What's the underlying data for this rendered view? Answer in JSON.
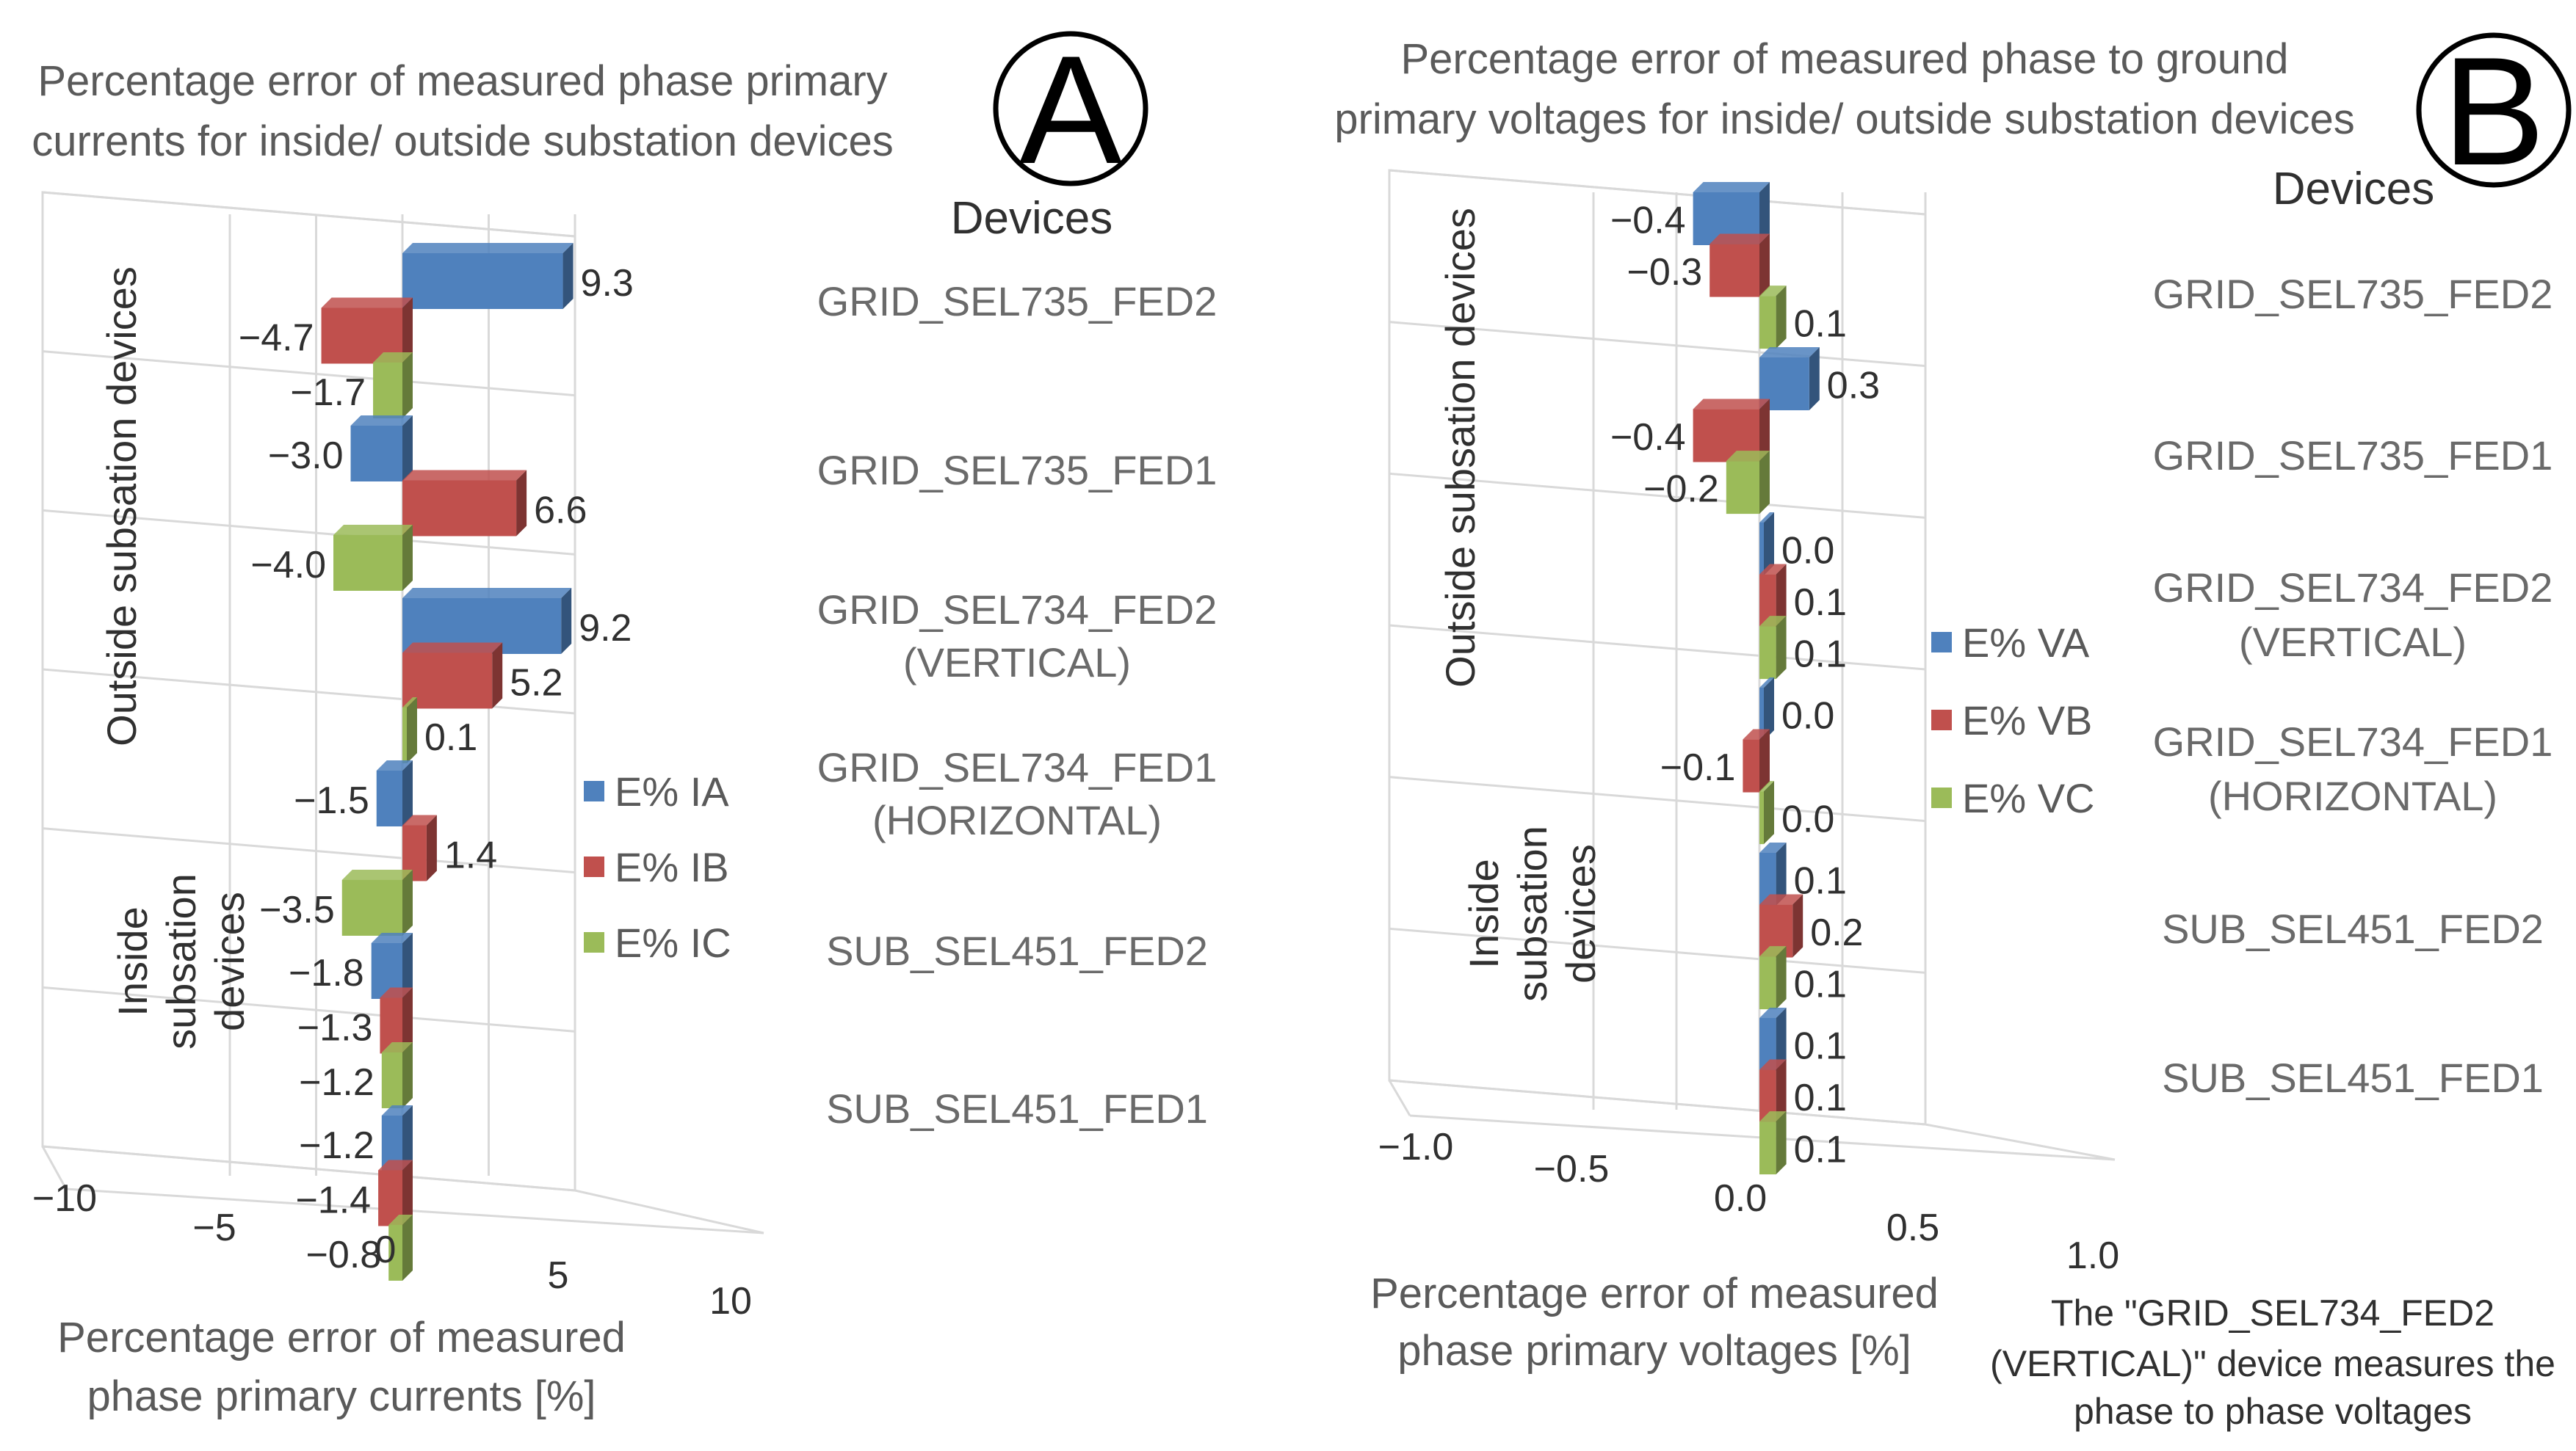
{
  "chart_data": [
    {
      "type": "bar",
      "orientation": "horizontal",
      "panel_label": "A",
      "title": "Percentage error of measured phase primary currents for inside/ outside substation devices",
      "title_lines": [
        "Percentage error of measured phase primary",
        "currents for inside/ outside substation devices"
      ],
      "xlabel_lines": [
        "Percentage error of measured",
        "phase primary currents [%]"
      ],
      "ylabel": "Devices",
      "xlim": [
        -10,
        10
      ],
      "xticks": [
        "−10",
        "−5",
        "0",
        "5",
        "10"
      ],
      "xtick_values": [
        -10,
        -5,
        0,
        5,
        10
      ],
      "categories": [
        {
          "lines": [
            "GRID_SEL735_FED2"
          ]
        },
        {
          "lines": [
            "GRID_SEL735_FED1"
          ]
        },
        {
          "lines": [
            "GRID_SEL734_FED2",
            "(VERTICAL)"
          ]
        },
        {
          "lines": [
            "GRID_SEL734_FED1",
            "(HORIZONTAL)"
          ]
        },
        {
          "lines": [
            "SUB_SEL451_FED2"
          ]
        },
        {
          "lines": [
            "SUB_SEL451_FED1"
          ]
        }
      ],
      "groups": [
        {
          "label_lines": [
            "Outside subsation devices"
          ],
          "categories": [
            0,
            1,
            2,
            3
          ]
        },
        {
          "label_lines": [
            "Inside",
            "subsation",
            "devices"
          ],
          "categories": [
            4,
            5
          ]
        }
      ],
      "series": [
        {
          "name": "E% IA",
          "color": "#4f81bd",
          "values": [
            9.3,
            -3.0,
            9.2,
            -1.5,
            -1.8,
            -1.2
          ],
          "labels": [
            "9.3",
            "−3.0",
            "9.2",
            "−1.5",
            "−1.8",
            "−1.2"
          ]
        },
        {
          "name": "E% IB",
          "color": "#c0504d",
          "values": [
            -4.7,
            6.6,
            5.2,
            1.4,
            -1.3,
            -1.4
          ],
          "labels": [
            "−4.7",
            "6.6",
            "5.2",
            "1.4",
            "−1.3",
            "−1.4"
          ]
        },
        {
          "name": "E% IC",
          "color": "#9bbb59",
          "values": [
            -1.7,
            -4.0,
            0.1,
            -3.5,
            -1.2,
            -0.8
          ],
          "labels": [
            "−1.7",
            "−4.0",
            "0.1",
            "−3.5",
            "−1.2",
            "−0.8"
          ]
        }
      ],
      "legend": "inside-right"
    },
    {
      "type": "bar",
      "orientation": "horizontal",
      "panel_label": "B",
      "title": "Percentage error of measured phase to ground primary voltages for inside/ outside substation devices",
      "title_lines": [
        "Percentage error of measured phase to ground",
        "primary voltages for inside/ outside substation devices"
      ],
      "xlabel_lines": [
        "Percentage error of measured",
        "phase primary voltages [%]"
      ],
      "ylabel": "Devices",
      "xlim": [
        -1.0,
        1.0
      ],
      "xticks": [
        "−1.0",
        "−0.5",
        "0.0",
        "0.5",
        "1.0"
      ],
      "xtick_values": [
        -1.0,
        -0.5,
        0.0,
        0.5,
        1.0
      ],
      "categories": [
        {
          "lines": [
            "GRID_SEL735_FED2"
          ]
        },
        {
          "lines": [
            "GRID_SEL735_FED1"
          ]
        },
        {
          "lines": [
            "GRID_SEL734_FED2",
            "(VERTICAL)"
          ]
        },
        {
          "lines": [
            "GRID_SEL734_FED1",
            "(HORIZONTAL)"
          ]
        },
        {
          "lines": [
            "SUB_SEL451_FED2"
          ]
        },
        {
          "lines": [
            "SUB_SEL451_FED1"
          ]
        }
      ],
      "groups": [
        {
          "label_lines": [
            "Outside subsation devices"
          ],
          "categories": [
            0,
            1,
            2,
            3
          ]
        },
        {
          "label_lines": [
            "Inside",
            "subsation",
            "devices"
          ],
          "categories": [
            4,
            5
          ]
        }
      ],
      "series": [
        {
          "name": "E% VA",
          "color": "#4f81bd",
          "values": [
            -0.4,
            0.3,
            0.0,
            0.0,
            0.1,
            0.1
          ],
          "labels": [
            "−0.4",
            "0.3",
            "0.0",
            "0.0",
            "0.1",
            "0.1"
          ]
        },
        {
          "name": "E% VB",
          "color": "#c0504d",
          "values": [
            -0.3,
            -0.4,
            0.1,
            -0.1,
            0.2,
            0.1
          ],
          "labels": [
            "−0.3",
            "−0.4",
            "0.1",
            "−0.1",
            "0.2",
            "0.1"
          ]
        },
        {
          "name": "E% VC",
          "color": "#9bbb59",
          "values": [
            0.1,
            -0.2,
            0.1,
            0.0,
            0.1,
            0.1
          ],
          "labels": [
            "0.1",
            "−0.2",
            "0.1",
            "0.0",
            "0.1",
            "0.1"
          ]
        }
      ],
      "legend": "inside-right",
      "note_lines": [
        "The \"GRID_SEL734_FED2",
        "(VERTICAL)\" device measures the",
        "phase to phase voltages"
      ]
    }
  ]
}
